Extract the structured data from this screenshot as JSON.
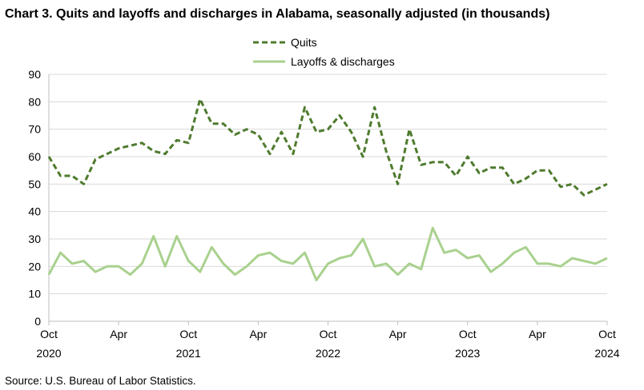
{
  "chart_data": {
    "type": "line",
    "title": "Chart 3. Quits and layoffs and discharges in Alabama, seasonally adjusted (in thousands)",
    "source": "Source: U.S. Bureau of Labor Statistics.",
    "xlabel": "",
    "ylabel": "",
    "ylim": [
      0,
      90
    ],
    "yticks": [
      0,
      10,
      20,
      30,
      40,
      50,
      60,
      70,
      80,
      90
    ],
    "grid": true,
    "legend_position": "top",
    "x_start": "2020-10",
    "x_end": "2024-10",
    "x": [
      "2020-10",
      "2020-11",
      "2020-12",
      "2021-01",
      "2021-02",
      "2021-03",
      "2021-04",
      "2021-05",
      "2021-06",
      "2021-07",
      "2021-08",
      "2021-09",
      "2021-10",
      "2021-11",
      "2021-12",
      "2022-01",
      "2022-02",
      "2022-03",
      "2022-04",
      "2022-05",
      "2022-06",
      "2022-07",
      "2022-08",
      "2022-09",
      "2022-10",
      "2022-11",
      "2022-12",
      "2023-01",
      "2023-02",
      "2023-03",
      "2023-04",
      "2023-05",
      "2023-06",
      "2023-07",
      "2023-08",
      "2023-09",
      "2023-10",
      "2023-11",
      "2023-12",
      "2024-01",
      "2024-02",
      "2024-03",
      "2024-04",
      "2024-05",
      "2024-06",
      "2024-07",
      "2024-08",
      "2024-09",
      "2024-10"
    ],
    "x_tick_labels": [
      {
        "month": "Oct",
        "year": "2020",
        "x": "2020-10"
      },
      {
        "month": "Apr",
        "year": "",
        "x": "2021-04"
      },
      {
        "month": "Oct",
        "year": "2021",
        "x": "2021-10"
      },
      {
        "month": "Apr",
        "year": "",
        "x": "2022-04"
      },
      {
        "month": "Oct",
        "year": "2022",
        "x": "2022-10"
      },
      {
        "month": "Apr",
        "year": "",
        "x": "2023-04"
      },
      {
        "month": "Oct",
        "year": "2023",
        "x": "2023-10"
      },
      {
        "month": "Apr",
        "year": "",
        "x": "2024-04"
      },
      {
        "month": "Oct",
        "year": "2024",
        "x": "2024-10"
      }
    ],
    "series": [
      {
        "name": "Quits",
        "color": "#4e7b2e",
        "style": "dashed",
        "values": [
          60,
          53,
          53,
          50,
          59,
          61,
          63,
          64,
          65,
          62,
          61,
          66,
          65,
          81,
          72,
          72,
          68,
          70,
          68,
          61,
          69,
          61,
          78,
          69,
          70,
          75,
          69,
          60,
          78,
          62,
          50,
          70,
          57,
          58,
          58,
          53,
          60,
          54,
          56,
          56,
          50,
          52,
          55,
          55,
          49,
          50,
          46,
          48,
          50
        ]
      },
      {
        "name": "Layoffs & discharges",
        "color": "#a9d18e",
        "style": "solid",
        "values": [
          17,
          25,
          21,
          22,
          18,
          20,
          20,
          17,
          21,
          31,
          20,
          31,
          22,
          18,
          27,
          21,
          17,
          20,
          24,
          25,
          22,
          21,
          25,
          15,
          21,
          23,
          24,
          30,
          20,
          21,
          17,
          21,
          19,
          34,
          25,
          26,
          23,
          24,
          18,
          21,
          25,
          27,
          21,
          21,
          20,
          23,
          22,
          21,
          23
        ]
      }
    ]
  }
}
